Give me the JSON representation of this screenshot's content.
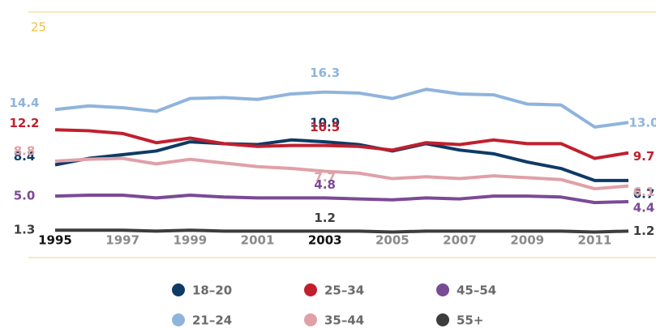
{
  "chart_data": {
    "type": "line",
    "x": [
      1995,
      1996,
      1997,
      1998,
      1999,
      2000,
      2001,
      2002,
      2003,
      2004,
      2005,
      2006,
      2007,
      2008,
      2009,
      2010,
      2011,
      2012
    ],
    "xlim": [
      1995,
      2012
    ],
    "xticks": [
      1995,
      1997,
      1999,
      2001,
      2003,
      2005,
      2007,
      2009,
      2011
    ],
    "highlight_xticks": [
      1995,
      2003
    ],
    "ylim": [
      0,
      26.3
    ],
    "yticks": [
      25
    ],
    "grid": true,
    "series": [
      {
        "name": "18–20",
        "color": "#0e3a66",
        "values": [
          8.4,
          9.1,
          9.5,
          9.9,
          10.9,
          10.7,
          10.6,
          11.1,
          10.9,
          10.6,
          9.9,
          10.7,
          10.0,
          9.6,
          8.7,
          8.0,
          6.7,
          6.7
        ],
        "value_labels": [
          "8.4",
          null,
          null,
          null,
          null,
          null,
          null,
          null,
          "10.9",
          null,
          null,
          null,
          null,
          null,
          null,
          null,
          null,
          "6.7"
        ]
      },
      {
        "name": "21–24",
        "color": "#8fb4dc",
        "values": [
          14.4,
          14.8,
          14.6,
          14.2,
          15.6,
          15.7,
          15.5,
          16.1,
          16.3,
          16.2,
          15.6,
          16.6,
          16.1,
          16.0,
          15.0,
          14.9,
          12.5,
          13.0
        ],
        "value_labels": [
          "14.4",
          null,
          null,
          null,
          null,
          null,
          null,
          null,
          "16.3",
          null,
          null,
          null,
          null,
          null,
          null,
          null,
          null,
          "13.0"
        ]
      },
      {
        "name": "25–34",
        "color": "#c0202e",
        "values": [
          12.2,
          12.1,
          11.8,
          10.8,
          11.3,
          10.7,
          10.4,
          10.5,
          10.5,
          10.4,
          10.0,
          10.8,
          10.6,
          11.1,
          10.7,
          10.7,
          9.1,
          9.7
        ],
        "value_labels": [
          "12.2",
          null,
          null,
          null,
          null,
          null,
          null,
          null,
          "10.5",
          null,
          null,
          null,
          null,
          null,
          null,
          null,
          null,
          "9.7"
        ]
      },
      {
        "name": "35–44",
        "color": "#e0a0a8",
        "values": [
          8.8,
          9.0,
          9.1,
          8.5,
          9.0,
          8.6,
          8.2,
          8.0,
          7.7,
          7.5,
          6.9,
          7.1,
          6.9,
          7.2,
          7.0,
          6.8,
          5.8,
          6.1
        ],
        "value_labels": [
          "8.8",
          null,
          null,
          null,
          null,
          null,
          null,
          null,
          "7.7",
          null,
          null,
          null,
          null,
          null,
          null,
          null,
          null,
          "6.1"
        ]
      },
      {
        "name": "45–54",
        "color": "#7b4a95",
        "values": [
          5.0,
          5.1,
          5.1,
          4.8,
          5.1,
          4.9,
          4.8,
          4.8,
          4.8,
          4.7,
          4.6,
          4.8,
          4.7,
          5.0,
          5.0,
          4.9,
          4.3,
          4.4
        ],
        "value_labels": [
          "5.0",
          null,
          null,
          null,
          null,
          null,
          null,
          null,
          "4.8",
          null,
          null,
          null,
          null,
          null,
          null,
          null,
          null,
          "4.4"
        ]
      },
      {
        "name": "55+",
        "color": "#3d3d3d",
        "values": [
          1.3,
          1.3,
          1.3,
          1.2,
          1.3,
          1.2,
          1.2,
          1.2,
          1.2,
          1.2,
          1.1,
          1.2,
          1.2,
          1.2,
          1.2,
          1.2,
          1.1,
          1.2
        ]
      }
    ]
  }
}
